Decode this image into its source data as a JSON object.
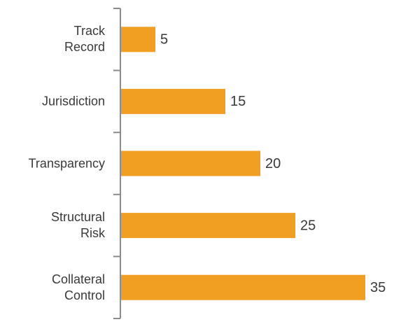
{
  "chart_data": {
    "type": "bar",
    "orientation": "horizontal",
    "categories": [
      "Track\nRecord",
      "Jurisdiction",
      "Transparency",
      "Structural\nRisk",
      "Collateral\nControl"
    ],
    "values": [
      5,
      15,
      20,
      25,
      35
    ],
    "color": "#f09f23"
  }
}
